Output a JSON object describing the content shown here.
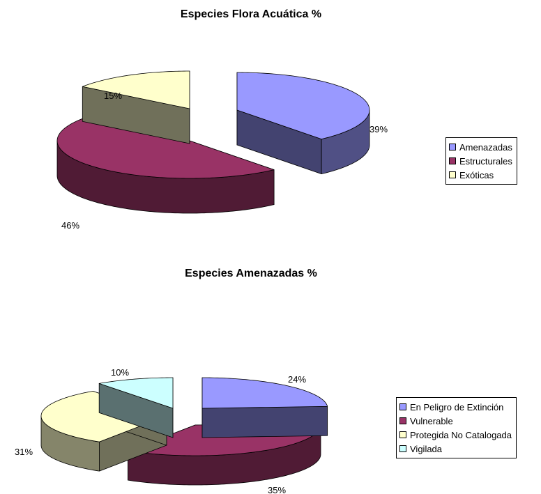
{
  "chart_data": [
    {
      "type": "pie",
      "title": "Especies Flora Acuática %",
      "categories": [
        "Amenazadas",
        "Estructurales",
        "Exóticas"
      ],
      "values": [
        39,
        46,
        15
      ],
      "labels": [
        "39%",
        "46%",
        "15%"
      ],
      "colors": [
        "#9999ff",
        "#993366",
        "#ffffcc"
      ],
      "legend": "right"
    },
    {
      "type": "pie",
      "title": "Especies Amenazadas %",
      "categories": [
        "En Peligro de Extinción",
        "Vulnerable",
        "Protegida No Catalogada",
        "Vigilada"
      ],
      "values": [
        24,
        35,
        31,
        10
      ],
      "labels": [
        "24%",
        "35%",
        "31%",
        "10%"
      ],
      "colors": [
        "#9999ff",
        "#993366",
        "#ffffcc",
        "#ccffff"
      ],
      "legend": "right"
    }
  ]
}
